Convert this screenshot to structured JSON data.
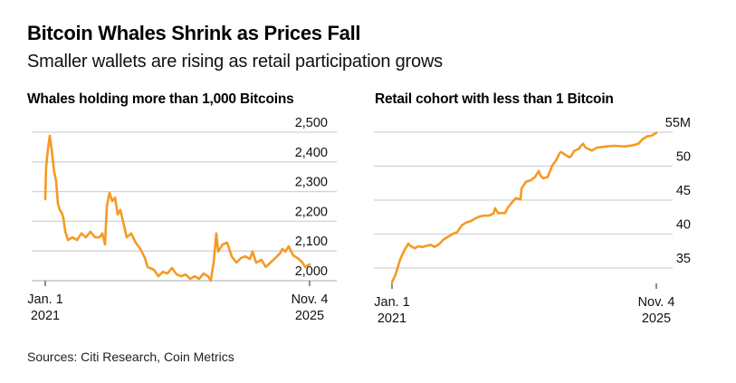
{
  "header": {
    "title": "Bitcoin Whales Shrink as Prices Fall",
    "subtitle": "Smaller wallets are rising as retail participation grows"
  },
  "footer": {
    "source": "Sources: Citi Research, Coin Metrics"
  },
  "colors": {
    "line": "#f59a23",
    "grid": "#d3d3d3",
    "axis": "#bcbcbc",
    "text": "#111111"
  },
  "chart_data": [
    {
      "type": "line",
      "title": "Whales holding more than 1,000 Bitcoins",
      "xlabel": "",
      "ylabel": "",
      "x_start_label": [
        "Jan. 1",
        "2021"
      ],
      "x_end_label": [
        "Nov. 4",
        "2025"
      ],
      "ylim": [
        2000,
        2500
      ],
      "yticks": [
        2000,
        2100,
        2200,
        2300,
        2400,
        2500
      ],
      "ytick_labels": [
        "2,000",
        "2,100",
        "2,200",
        "2,300",
        "2,400",
        "2,500"
      ],
      "grid": true,
      "baseline": true,
      "x_unit": "fraction of period Jan. 1 2021 to Nov. 4 2025",
      "series": [
        {
          "name": "Whales holding more than 1,000 Bitcoins",
          "x": [
            0,
            0.003,
            0.01,
            0.017,
            0.024,
            0.034,
            0.041,
            0.048,
            0.055,
            0.062,
            0.068,
            0.075,
            0.086,
            0.103,
            0.12,
            0.137,
            0.154,
            0.171,
            0.188,
            0.205,
            0.216,
            0.226,
            0.233,
            0.243,
            0.253,
            0.264,
            0.274,
            0.284,
            0.295,
            0.308,
            0.325,
            0.342,
            0.36,
            0.377,
            0.387,
            0.411,
            0.428,
            0.445,
            0.462,
            0.479,
            0.497,
            0.514,
            0.531,
            0.548,
            0.565,
            0.582,
            0.599,
            0.616,
            0.626,
            0.637,
            0.647,
            0.654,
            0.671,
            0.688,
            0.705,
            0.723,
            0.74,
            0.757,
            0.774,
            0.784,
            0.798,
            0.818,
            0.834,
            0.852,
            0.87,
            0.887,
            0.897,
            0.908,
            0.921,
            0.938,
            0.955,
            0.973,
            0.983,
            1.0
          ],
          "values": [
            2274,
            2381,
            2442,
            2488,
            2442,
            2366,
            2335,
            2259,
            2238,
            2229,
            2213,
            2168,
            2137,
            2146,
            2137,
            2159,
            2146,
            2165,
            2146,
            2146,
            2159,
            2122,
            2250,
            2296,
            2268,
            2280,
            2223,
            2238,
            2198,
            2146,
            2159,
            2128,
            2107,
            2076,
            2046,
            2037,
            2015,
            2030,
            2024,
            2043,
            2021,
            2015,
            2021,
            2006,
            2015,
            2006,
            2024,
            2015,
            2000,
            2061,
            2159,
            2098,
            2122,
            2128,
            2082,
            2061,
            2076,
            2082,
            2073,
            2098,
            2061,
            2070,
            2046,
            2061,
            2076,
            2091,
            2107,
            2098,
            2116,
            2085,
            2076,
            2061,
            2046,
            2055
          ]
        }
      ]
    },
    {
      "type": "line",
      "title": "Retail cohort with less than 1 Bitcoin",
      "xlabel": "",
      "ylabel": "",
      "x_start_label": [
        "Jan. 1",
        "2021"
      ],
      "x_end_label": [
        "Nov. 4",
        "2025"
      ],
      "ylim": [
        32,
        55
      ],
      "yticks": [
        35,
        40,
        45,
        50,
        55
      ],
      "ytick_labels": [
        "35",
        "40",
        "45",
        "50",
        "55M"
      ],
      "grid": true,
      "baseline": false,
      "x_unit": "fraction of period Jan. 1 2021 to Nov. 4 2025",
      "series": [
        {
          "name": "Retail cohort with less than 1 Bitcoin (millions)",
          "x": [
            0,
            0.014,
            0.031,
            0.048,
            0.062,
            0.068,
            0.086,
            0.099,
            0.116,
            0.134,
            0.147,
            0.161,
            0.178,
            0.195,
            0.212,
            0.229,
            0.247,
            0.264,
            0.281,
            0.298,
            0.315,
            0.332,
            0.349,
            0.366,
            0.384,
            0.39,
            0.401,
            0.418,
            0.428,
            0.438,
            0.455,
            0.469,
            0.486,
            0.49,
            0.507,
            0.524,
            0.541,
            0.555,
            0.562,
            0.572,
            0.589,
            0.606,
            0.62,
            0.634,
            0.64,
            0.654,
            0.671,
            0.678,
            0.688,
            0.709,
            0.712,
            0.723,
            0.733,
            0.757,
            0.774,
            0.808,
            0.842,
            0.88,
            0.914,
            0.932,
            0.949,
            0.966,
            0.983,
            1.0
          ],
          "values": [
            32.9,
            34.1,
            36.3,
            37.7,
            38.6,
            38.3,
            37.9,
            38.2,
            38.1,
            38.3,
            38.4,
            38.1,
            38.5,
            39.2,
            39.6,
            40.0,
            40.3,
            41.3,
            41.7,
            41.9,
            42.3,
            42.6,
            42.7,
            42.7,
            43.0,
            43.8,
            43.1,
            43.1,
            43.1,
            43.9,
            44.7,
            45.3,
            45.1,
            46.7,
            47.7,
            47.9,
            48.4,
            49.3,
            48.6,
            48.2,
            48.4,
            50.1,
            50.8,
            51.9,
            52.1,
            51.7,
            51.3,
            51.5,
            52.2,
            52.6,
            52.9,
            53.3,
            52.7,
            52.3,
            52.7,
            52.9,
            53.0,
            52.9,
            53.1,
            53.3,
            54.0,
            54.4,
            54.5,
            54.9
          ]
        }
      ]
    }
  ]
}
